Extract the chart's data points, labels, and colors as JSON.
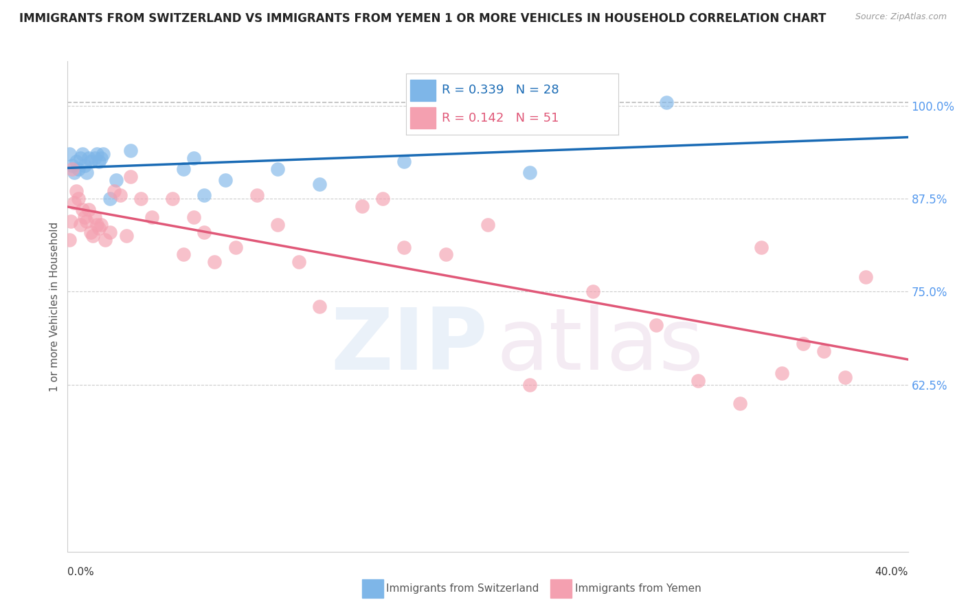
{
  "title": "IMMIGRANTS FROM SWITZERLAND VS IMMIGRANTS FROM YEMEN 1 OR MORE VEHICLES IN HOUSEHOLD CORRELATION CHART",
  "source": "Source: ZipAtlas.com",
  "ylabel": "1 or more Vehicles in Household",
  "xlim": [
    0.0,
    40.0
  ],
  "ylim": [
    40.0,
    106.0
  ],
  "r_switzerland": 0.339,
  "n_switzerland": 28,
  "r_yemen": 0.142,
  "n_yemen": 51,
  "color_switzerland": "#7EB6E8",
  "color_yemen": "#F4A0B0",
  "color_line_switzerland": "#1A6BB5",
  "color_line_yemen": "#E05878",
  "color_dashed": "#BBBBBB",
  "switzerland_x": [
    0.1,
    0.2,
    0.3,
    0.4,
    0.5,
    0.6,
    0.7,
    0.8,
    0.9,
    1.0,
    1.1,
    1.3,
    1.4,
    1.5,
    1.6,
    1.7,
    2.0,
    2.3,
    3.0,
    5.5,
    6.0,
    6.5,
    7.5,
    10.0,
    12.0,
    16.0,
    22.0,
    28.5
  ],
  "switzerland_y": [
    93.5,
    92.0,
    91.0,
    92.5,
    91.5,
    93.0,
    93.5,
    92.0,
    91.0,
    93.0,
    92.5,
    93.0,
    93.5,
    92.5,
    93.0,
    93.5,
    87.5,
    90.0,
    94.0,
    91.5,
    93.0,
    88.0,
    90.0,
    91.5,
    89.5,
    92.5,
    91.0,
    100.5
  ],
  "yemen_x": [
    0.1,
    0.15,
    0.2,
    0.3,
    0.4,
    0.5,
    0.6,
    0.7,
    0.8,
    0.9,
    1.0,
    1.1,
    1.2,
    1.3,
    1.4,
    1.5,
    1.6,
    1.8,
    2.0,
    2.2,
    2.5,
    2.8,
    3.0,
    3.5,
    4.0,
    5.0,
    5.5,
    6.0,
    6.5,
    7.0,
    8.0,
    9.0,
    10.0,
    11.0,
    12.0,
    14.0,
    15.0,
    16.0,
    18.0,
    20.0,
    22.0,
    25.0,
    28.0,
    30.0,
    32.0,
    33.0,
    34.0,
    35.0,
    36.0,
    37.0,
    38.0
  ],
  "yemen_y": [
    82.0,
    84.5,
    91.5,
    87.0,
    88.5,
    87.5,
    84.0,
    86.0,
    85.0,
    84.5,
    86.0,
    83.0,
    82.5,
    85.0,
    84.0,
    83.5,
    84.0,
    82.0,
    83.0,
    88.5,
    88.0,
    82.5,
    90.5,
    87.5,
    85.0,
    87.5,
    80.0,
    85.0,
    83.0,
    79.0,
    81.0,
    88.0,
    84.0,
    79.0,
    73.0,
    86.5,
    87.5,
    81.0,
    80.0,
    84.0,
    62.5,
    75.0,
    70.5,
    63.0,
    60.0,
    81.0,
    64.0,
    68.0,
    67.0,
    63.5,
    77.0
  ],
  "ytick_vals": [
    62.5,
    75.0,
    87.5,
    100.0
  ],
  "ytick_labels": [
    "62.5%",
    "75.0%",
    "87.5%",
    "100.0%"
  ]
}
